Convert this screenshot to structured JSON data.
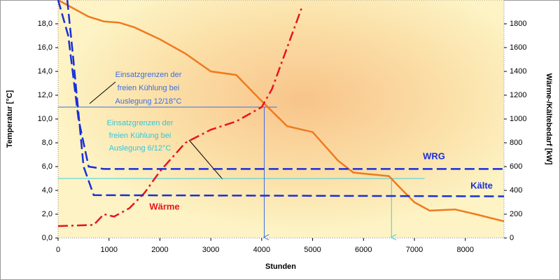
{
  "chart_data": {
    "type": "line",
    "xlabel": "Stunden",
    "ylabel": "Temperatur [°C]",
    "y2label": "Wärme-/Kältebedarf [kW]",
    "xlim": [
      0,
      8760
    ],
    "ylim": [
      0,
      20
    ],
    "y2lim": [
      0,
      2000
    ],
    "xticks": [
      0,
      1000,
      2000,
      3000,
      4000,
      5000,
      6000,
      7000,
      8000
    ],
    "yticks": [
      {
        "value": 0,
        "label": "0,0"
      },
      {
        "value": 2,
        "label": "2,0"
      },
      {
        "value": 4,
        "label": "4,0"
      },
      {
        "value": 6,
        "label": "6,0"
      },
      {
        "value": 8,
        "label": "8,0"
      },
      {
        "value": 10,
        "label": "10,0"
      },
      {
        "value": 12,
        "label": "12,0"
      },
      {
        "value": 14,
        "label": "14,0"
      },
      {
        "value": 16,
        "label": "16,0"
      },
      {
        "value": 18,
        "label": "18,0"
      }
    ],
    "y2ticks": [
      0,
      200,
      400,
      600,
      800,
      1000,
      1200,
      1400,
      1600,
      1800
    ],
    "grid": false,
    "series": [
      {
        "color": "#f07a1e",
        "line_style": "solid",
        "x": [
          0,
          600,
          900,
          1200,
          1500,
          2000,
          2500,
          3000,
          3500,
          4000,
          4500,
          5000,
          5500,
          5800,
          6500,
          6700,
          7000,
          7300,
          7800,
          8200,
          8760
        ],
        "values": [
          20,
          18.6,
          18.2,
          18.1,
          17.7,
          16.7,
          15.5,
          14.0,
          13.7,
          11.5,
          9.4,
          8.9,
          6.5,
          5.5,
          5.2,
          4.3,
          3.0,
          2.3,
          2.4,
          2.0,
          1.4
        ]
      },
      {
        "color": "#e8141e",
        "line_style": "dashdot",
        "axis": "y2",
        "x": [
          0,
          700,
          900,
          1100,
          1400,
          1700,
          2000,
          2500,
          3000,
          3500,
          4000,
          4200,
          4500,
          4800
        ],
        "values": [
          100,
          110,
          200,
          180,
          250,
          380,
          560,
          800,
          910,
          980,
          1100,
          1250,
          1600,
          1950
        ]
      },
      {
        "color": "#1a2fd6",
        "line_style": "dashed",
        "x": [
          0,
          200,
          400,
          600,
          900,
          8760
        ],
        "values": [
          20,
          17,
          10,
          6.0,
          5.8,
          5.8
        ]
      },
      {
        "color": "#1a2fd6",
        "line_style": "dashed",
        "x": [
          180,
          300,
          500,
          700,
          8760
        ],
        "values": [
          20,
          15,
          6,
          3.6,
          3.5
        ]
      }
    ],
    "hlines": [
      {
        "value": 11.0,
        "xmax": 4300,
        "color": "#3a6ee8"
      },
      {
        "value": 5.0,
        "xmax": 7200,
        "color": "#3cd0e0"
      }
    ],
    "vlines": [
      {
        "x": 4050,
        "from": 11.0,
        "color": "#3a6ee8"
      },
      {
        "x": 6550,
        "from": 5.0,
        "color": "#3cd0e0"
      }
    ],
    "annotations": [
      {
        "lines": [
          "Einsatzgrenzen der",
          "freien Kühlung bei",
          "Auslegung 12/18°C"
        ],
        "color": "#3a6ee8"
      },
      {
        "lines": [
          "Einsatzgrenzen der",
          "freien Kühlung bei",
          "Auslegung 6/12°C"
        ],
        "color": "#2ec8dc"
      },
      {
        "lines": [
          "WRG"
        ],
        "color": "#1a2fd6"
      },
      {
        "lines": [
          "Kälte"
        ],
        "color": "#1a2fd6"
      },
      {
        "lines": [
          "Wärme"
        ],
        "color": "#e8141e"
      }
    ]
  }
}
